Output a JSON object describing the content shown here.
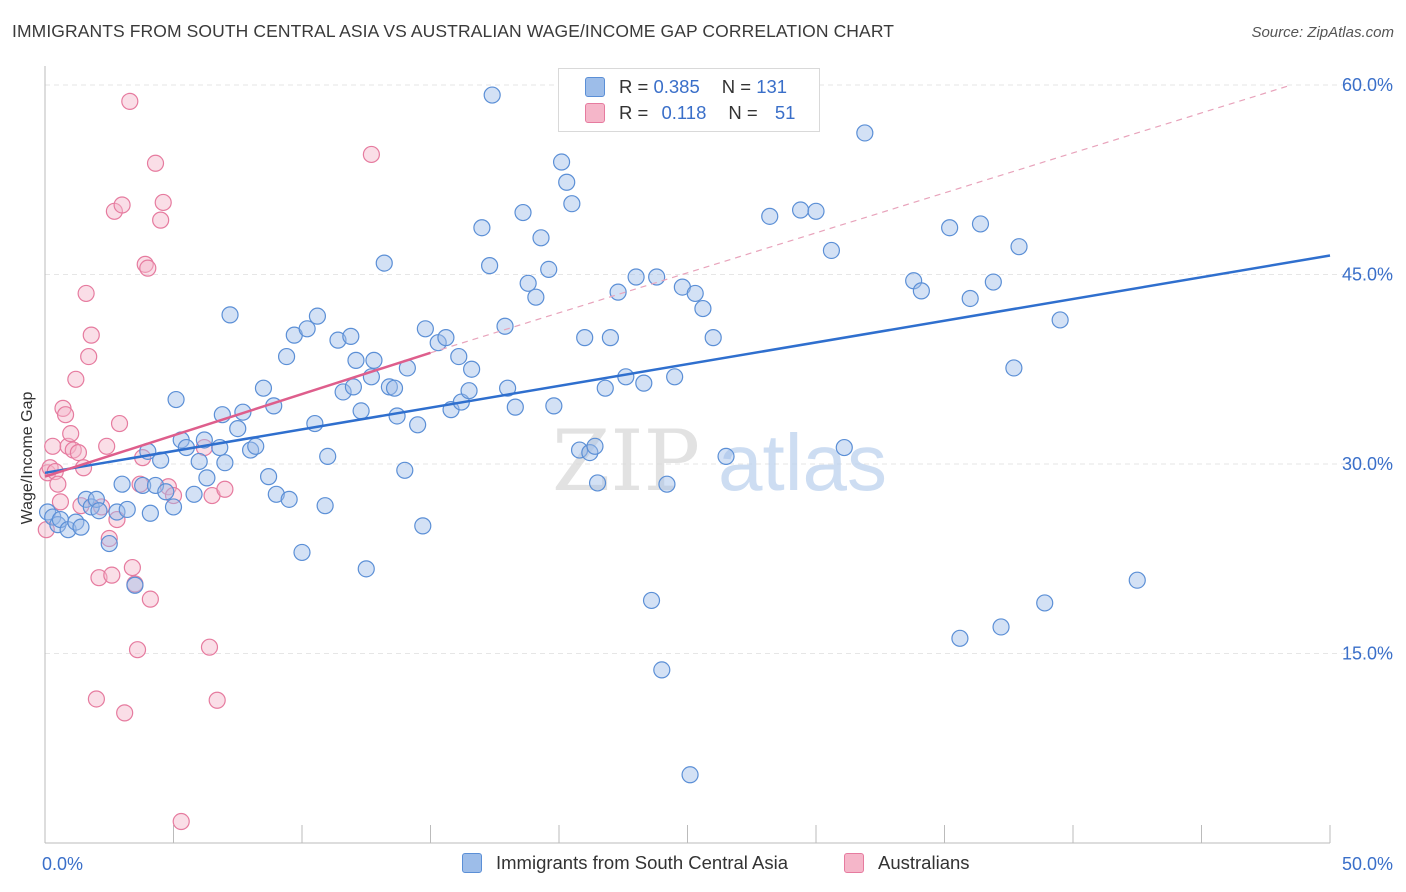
{
  "title": "IMMIGRANTS FROM SOUTH CENTRAL ASIA VS AUSTRALIAN WAGE/INCOME GAP CORRELATION CHART",
  "source": "Source: ZipAtlas.com",
  "watermark": {
    "zip": "ZIP",
    "atlas": "atlas"
  },
  "legend": {
    "r_label": "R =",
    "n_label": "N =",
    "rows": [
      {
        "r": "0.385",
        "n": "131",
        "color": "#a9c4ee"
      },
      {
        "r": "0.118",
        "n": "51",
        "color": "#f5b6c9"
      }
    ]
  },
  "colors": {
    "blue_fill": "#9dbde9",
    "blue_stroke": "#5b8fd6",
    "blue_line": "#2f6fce",
    "pink_fill": "#f5b6c9",
    "pink_stroke": "#e67b9f",
    "pink_line": "#de5e8c",
    "tick_text": "#3a6fc9",
    "grid": "#e6e6e6"
  },
  "chart_data": {
    "type": "scatter",
    "title": "IMMIGRANTS FROM SOUTH CENTRAL ASIA VS AUSTRALIAN WAGE/INCOME GAP CORRELATION CHART",
    "xlabel": "",
    "ylabel": "Wage/Income Gap",
    "xlim": [
      0,
      50
    ],
    "ylim": [
      0,
      61.5
    ],
    "x_tick_labels": {
      "left": "0.0%",
      "right": "50.0%"
    },
    "y_ticks": [
      {
        "value": 15,
        "label": "15.0%"
      },
      {
        "value": 30,
        "label": "30.0%"
      },
      {
        "value": 45,
        "label": "45.0%"
      },
      {
        "value": 60,
        "label": "60.0%"
      }
    ],
    "series": [
      {
        "name": "Immigrants from South Central Asia",
        "r": 0.385,
        "n": 131,
        "trend": {
          "x0": 0,
          "y0": 29.3,
          "x1": 50,
          "y1": 46.5
        },
        "points": [
          [
            0.1,
            26.2
          ],
          [
            0.3,
            25.8
          ],
          [
            0.5,
            25.2
          ],
          [
            0.6,
            25.6
          ],
          [
            0.9,
            24.8
          ],
          [
            1.2,
            25.4
          ],
          [
            1.4,
            25.0
          ],
          [
            1.6,
            27.2
          ],
          [
            1.8,
            26.6
          ],
          [
            2.0,
            27.2
          ],
          [
            2.1,
            26.3
          ],
          [
            2.5,
            23.7
          ],
          [
            2.8,
            26.2
          ],
          [
            3.0,
            28.4
          ],
          [
            3.2,
            26.4
          ],
          [
            3.5,
            20.4
          ],
          [
            3.8,
            28.3
          ],
          [
            4.0,
            31.0
          ],
          [
            4.1,
            26.1
          ],
          [
            4.3,
            28.3
          ],
          [
            4.5,
            30.3
          ],
          [
            4.7,
            27.8
          ],
          [
            5.0,
            26.6
          ],
          [
            5.1,
            35.1
          ],
          [
            5.3,
            31.9
          ],
          [
            5.5,
            31.3
          ],
          [
            5.8,
            27.6
          ],
          [
            6.0,
            30.2
          ],
          [
            6.2,
            31.9
          ],
          [
            6.3,
            28.9
          ],
          [
            6.8,
            31.3
          ],
          [
            6.9,
            33.9
          ],
          [
            7.0,
            30.1
          ],
          [
            7.2,
            41.8
          ],
          [
            7.5,
            32.8
          ],
          [
            7.7,
            34.1
          ],
          [
            8.0,
            31.1
          ],
          [
            8.2,
            31.4
          ],
          [
            8.5,
            36.0
          ],
          [
            8.7,
            29.0
          ],
          [
            8.9,
            34.6
          ],
          [
            9.0,
            27.6
          ],
          [
            9.4,
            38.5
          ],
          [
            9.5,
            27.2
          ],
          [
            9.7,
            40.2
          ],
          [
            10.0,
            23.0
          ],
          [
            10.2,
            40.7
          ],
          [
            10.5,
            33.2
          ],
          [
            10.6,
            41.7
          ],
          [
            10.9,
            26.7
          ],
          [
            11.0,
            30.6
          ],
          [
            11.4,
            39.8
          ],
          [
            11.6,
            35.7
          ],
          [
            11.9,
            40.1
          ],
          [
            12.0,
            36.1
          ],
          [
            12.1,
            38.2
          ],
          [
            12.3,
            34.2
          ],
          [
            12.5,
            21.7
          ],
          [
            12.7,
            36.9
          ],
          [
            12.8,
            38.2
          ],
          [
            13.2,
            45.9
          ],
          [
            13.4,
            36.1
          ],
          [
            13.6,
            36.0
          ],
          [
            13.7,
            33.8
          ],
          [
            14.0,
            29.5
          ],
          [
            14.1,
            37.6
          ],
          [
            14.5,
            33.1
          ],
          [
            14.7,
            25.1
          ],
          [
            14.8,
            40.7
          ],
          [
            15.3,
            39.6
          ],
          [
            15.6,
            40.0
          ],
          [
            15.8,
            34.3
          ],
          [
            16.1,
            38.5
          ],
          [
            16.2,
            34.9
          ],
          [
            16.5,
            35.8
          ],
          [
            16.6,
            37.5
          ],
          [
            17.0,
            48.7
          ],
          [
            17.3,
            45.7
          ],
          [
            17.4,
            59.2
          ],
          [
            17.9,
            40.9
          ],
          [
            18.0,
            36.0
          ],
          [
            18.3,
            34.5
          ],
          [
            18.6,
            49.9
          ],
          [
            18.8,
            44.3
          ],
          [
            19.1,
            43.2
          ],
          [
            19.3,
            47.9
          ],
          [
            19.6,
            45.4
          ],
          [
            19.8,
            34.6
          ],
          [
            20.1,
            53.9
          ],
          [
            20.3,
            52.3
          ],
          [
            20.5,
            50.6
          ],
          [
            20.8,
            31.1
          ],
          [
            21.0,
            40.0
          ],
          [
            21.2,
            30.9
          ],
          [
            21.4,
            31.4
          ],
          [
            21.5,
            28.5
          ],
          [
            21.8,
            36.0
          ],
          [
            22.0,
            40.0
          ],
          [
            22.3,
            43.6
          ],
          [
            22.6,
            36.9
          ],
          [
            23.0,
            44.8
          ],
          [
            23.3,
            36.4
          ],
          [
            23.6,
            19.2
          ],
          [
            23.8,
            44.8
          ],
          [
            24.0,
            13.7
          ],
          [
            24.2,
            28.4
          ],
          [
            24.5,
            36.9
          ],
          [
            24.8,
            44.0
          ],
          [
            25.1,
            5.4
          ],
          [
            25.3,
            43.5
          ],
          [
            25.6,
            42.3
          ],
          [
            26.0,
            40.0
          ],
          [
            26.5,
            30.6
          ],
          [
            28.2,
            49.6
          ],
          [
            29.4,
            50.1
          ],
          [
            30.0,
            50.0
          ],
          [
            30.6,
            46.9
          ],
          [
            31.1,
            31.3
          ],
          [
            31.9,
            56.2
          ],
          [
            33.8,
            44.5
          ],
          [
            34.1,
            43.7
          ],
          [
            35.2,
            48.7
          ],
          [
            35.6,
            16.2
          ],
          [
            36.0,
            43.1
          ],
          [
            36.4,
            49.0
          ],
          [
            36.9,
            44.4
          ],
          [
            37.2,
            17.1
          ],
          [
            37.7,
            37.6
          ],
          [
            37.9,
            47.2
          ],
          [
            38.9,
            19.0
          ],
          [
            39.5,
            41.4
          ],
          [
            42.5,
            20.8
          ]
        ]
      },
      {
        "name": "Australians",
        "r": 0.118,
        "n": 51,
        "trend": {
          "x0": 0,
          "y0": 29.0,
          "x1": 15,
          "y1": 38.8
        },
        "trend_ext": {
          "x0": 15,
          "y0": 38.8,
          "x1": 48.5,
          "y1": 60.0
        },
        "points": [
          [
            0.05,
            24.8
          ],
          [
            0.1,
            29.3
          ],
          [
            0.2,
            29.7
          ],
          [
            0.3,
            31.4
          ],
          [
            0.4,
            29.4
          ],
          [
            0.5,
            28.4
          ],
          [
            0.6,
            27.0
          ],
          [
            0.7,
            34.4
          ],
          [
            0.8,
            33.9
          ],
          [
            0.9,
            31.4
          ],
          [
            1.0,
            32.4
          ],
          [
            1.1,
            31.1
          ],
          [
            1.2,
            36.7
          ],
          [
            1.3,
            30.9
          ],
          [
            1.4,
            26.7
          ],
          [
            1.5,
            29.7
          ],
          [
            1.6,
            43.5
          ],
          [
            1.7,
            38.5
          ],
          [
            1.8,
            40.2
          ],
          [
            2.0,
            11.4
          ],
          [
            2.1,
            21.0
          ],
          [
            2.2,
            26.6
          ],
          [
            2.4,
            31.4
          ],
          [
            2.5,
            24.1
          ],
          [
            2.6,
            21.2
          ],
          [
            2.7,
            50.0
          ],
          [
            2.8,
            25.6
          ],
          [
            2.9,
            33.2
          ],
          [
            3.0,
            50.5
          ],
          [
            3.1,
            10.3
          ],
          [
            3.3,
            58.7
          ],
          [
            3.4,
            21.8
          ],
          [
            3.5,
            20.5
          ],
          [
            3.6,
            15.3
          ],
          [
            3.7,
            28.4
          ],
          [
            3.8,
            30.5
          ],
          [
            3.9,
            45.8
          ],
          [
            4.0,
            45.5
          ],
          [
            4.1,
            19.3
          ],
          [
            4.3,
            53.8
          ],
          [
            4.5,
            49.3
          ],
          [
            4.6,
            50.7
          ],
          [
            4.8,
            28.2
          ],
          [
            5.0,
            27.5
          ],
          [
            5.3,
            1.7
          ],
          [
            6.2,
            31.3
          ],
          [
            6.4,
            15.5
          ],
          [
            6.5,
            27.5
          ],
          [
            6.7,
            11.3
          ],
          [
            7.0,
            28.0
          ],
          [
            12.7,
            54.5
          ]
        ]
      }
    ]
  },
  "bottom_legend": [
    {
      "label": "Immigrants from South Central Asia"
    },
    {
      "label": "Australians"
    }
  ]
}
